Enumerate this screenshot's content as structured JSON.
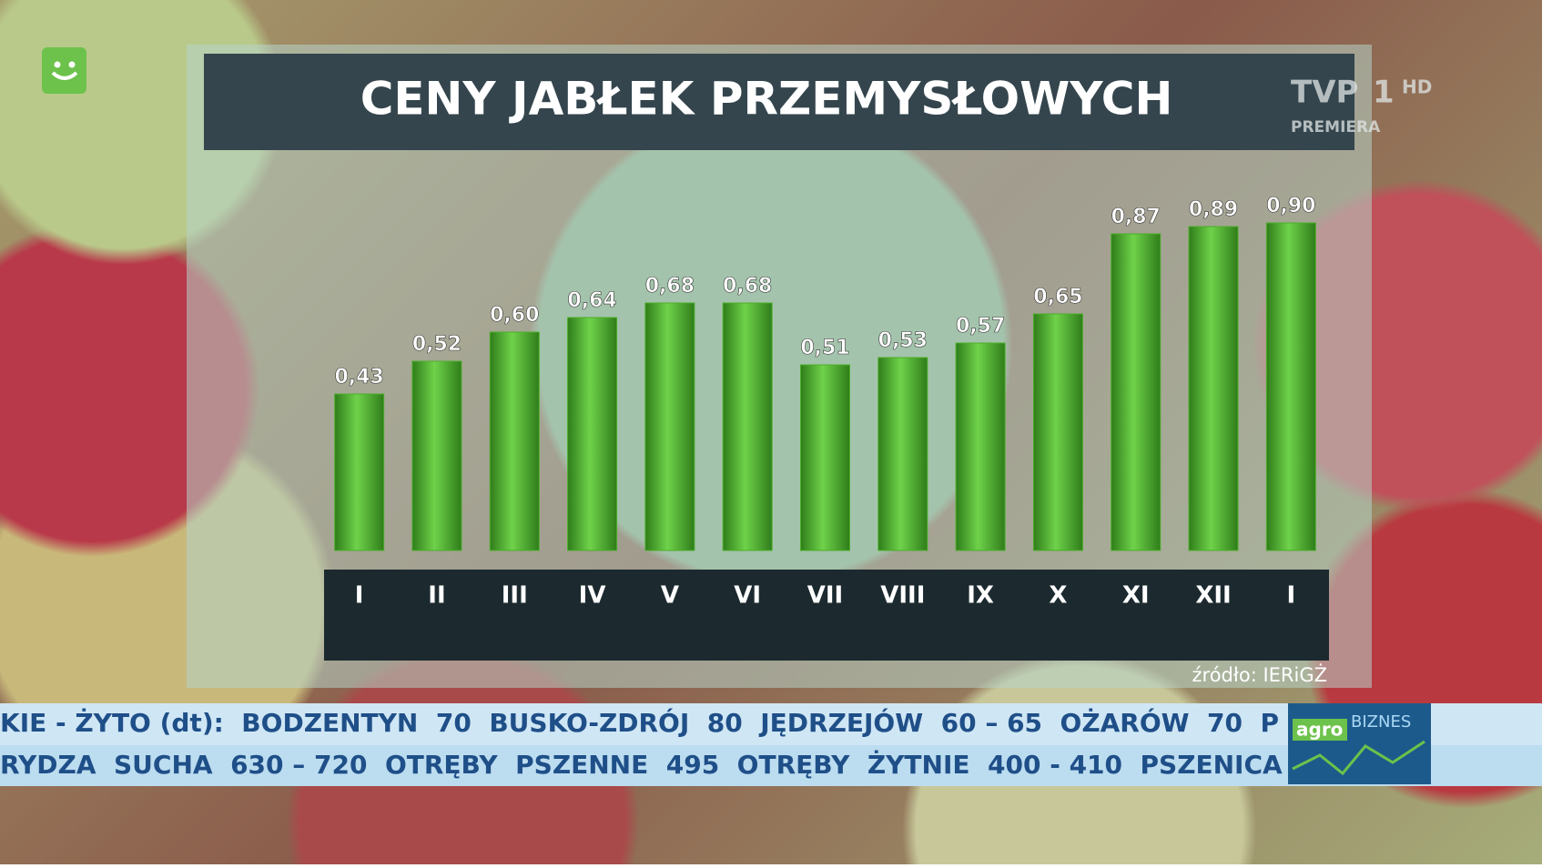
{
  "chart_data": {
    "type": "bar",
    "title": "CENY JABŁEK PRZEMYSŁOWYCH",
    "categories": [
      "I",
      "II",
      "III",
      "IV",
      "V",
      "VI",
      "VII",
      "VIII",
      "IX",
      "X",
      "XI",
      "XII",
      "I"
    ],
    "values": [
      0.43,
      0.52,
      0.6,
      0.64,
      0.68,
      0.68,
      0.51,
      0.53,
      0.57,
      0.65,
      0.87,
      0.89,
      0.9
    ],
    "value_labels": [
      "0,43",
      "0,52",
      "0,60",
      "0,64",
      "0,68",
      "0,68",
      "0,51",
      "0,53",
      "0,57",
      "0,65",
      "0,87",
      "0,89",
      "0,90"
    ],
    "color": "#4caf2a",
    "ylim": [
      0,
      1
    ],
    "source": "źródło: IERiGŻ"
  },
  "logos": {
    "channel": "TVP",
    "channel_number": "1",
    "hd": "HD",
    "premiera": "PREMIERA",
    "agro": "agro",
    "biznes": "BIZNES"
  },
  "ticker": {
    "line1": "KIE - ŻYTO (dt):  BODZENTYN  70  BUSKO-ZDRÓJ  80  JĘDRZEJÓW  60 – 65  OŻARÓW  70  P",
    "line2": "RYDZA  SUCHA  630 – 720  OTRĘBY  PSZENNE  495  OTRĘBY  ŻYTNIE  400 - 410  PSZENICA"
  }
}
